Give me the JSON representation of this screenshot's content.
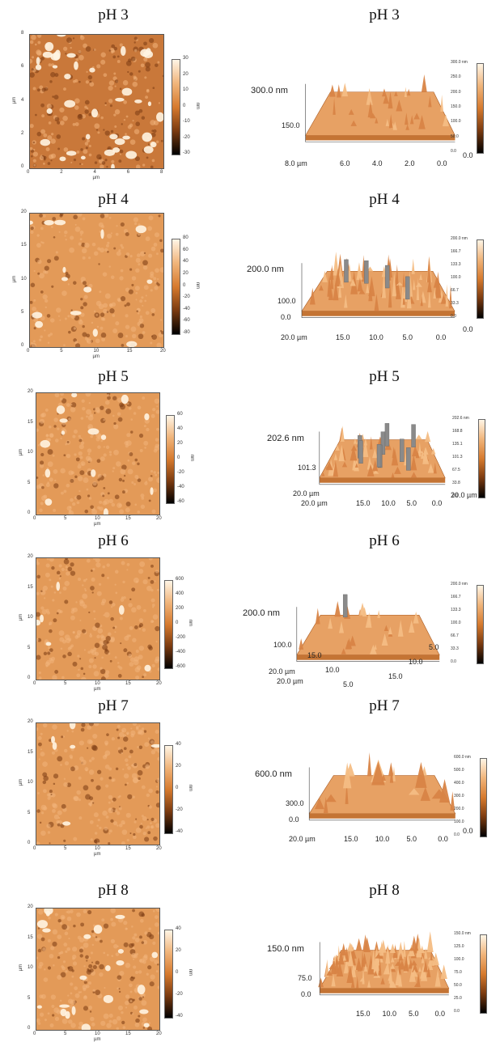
{
  "panels": [
    {
      "title": "pH 3",
      "map2d": {
        "unit": "µm",
        "y_ticks": [
          "8",
          "6",
          "4",
          "2",
          "0"
        ],
        "x_ticks": [
          "0",
          "2",
          "4",
          "6",
          "8"
        ],
        "colorbar_unit": "nm",
        "colorbar_ticks": [
          "30",
          "20",
          "10",
          "0",
          "-10",
          "-20",
          "-30"
        ]
      },
      "surface3d": {
        "z_label": "300.0 nm",
        "z_label2": "150.0",
        "x_label_far": "8.0 µm",
        "x_ticks": [
          "6.0",
          "4.0",
          "2.0",
          "0.0"
        ],
        "y_label_near": "0.0",
        "colorbar_ticks": [
          "300.0 nm",
          "250.0",
          "200.0",
          "150.0",
          "100.0",
          "50.0",
          "0.0"
        ]
      }
    },
    {
      "title": "pH 4",
      "map2d": {
        "unit": "µm",
        "y_ticks": [
          "20",
          "15",
          "10",
          "5",
          "0"
        ],
        "x_ticks": [
          "0",
          "5",
          "10",
          "15",
          "20"
        ],
        "colorbar_unit": "nm",
        "colorbar_ticks": [
          "80",
          "60",
          "40",
          "20",
          "0",
          "-20",
          "-40",
          "-60",
          "-80"
        ]
      },
      "surface3d": {
        "z_label": "200.0 nm",
        "z_label2": "100.0",
        "z_label3": "0.0",
        "x_label_far": "20.0 µm",
        "x_ticks": [
          "15.0",
          "10.0",
          "5.0",
          "0.0"
        ],
        "y_label_near": "0.0",
        "colorbar_ticks": [
          "200.0 nm",
          "166.7",
          "133.3",
          "100.0",
          "66.7",
          "33.3",
          "0.0"
        ]
      }
    },
    {
      "title": "pH 5",
      "map2d": {
        "unit": "µm",
        "y_ticks": [
          "20",
          "15",
          "10",
          "5",
          "0"
        ],
        "x_ticks": [
          "0",
          "5",
          "10",
          "15",
          "20"
        ],
        "colorbar_unit": "nm",
        "colorbar_ticks": [
          "60",
          "40",
          "20",
          "0",
          "-20",
          "-40",
          "-60"
        ]
      },
      "surface3d": {
        "z_label": "202.6 nm",
        "z_label2": "101.3",
        "x_label_far": "20.0 µm",
        "x_label_far2": "20.0 µm",
        "x_ticks": [
          "15.0",
          "10.0",
          "5.0",
          "0.0"
        ],
        "y_label_near": "20.0 µm",
        "colorbar_ticks": [
          "202.6 nm",
          "168.8",
          "135.1",
          "101.3",
          "67.5",
          "33.8",
          "0.0"
        ]
      }
    },
    {
      "title": "pH 6",
      "map2d": {
        "unit": "µm",
        "y_ticks": [
          "20",
          "15",
          "10",
          "5",
          "0"
        ],
        "x_ticks": [
          "0",
          "5",
          "10",
          "15",
          "20"
        ],
        "colorbar_unit": "nm",
        "colorbar_ticks": [
          "600",
          "400",
          "200",
          "0",
          "-200",
          "-400",
          "-600"
        ]
      },
      "surface3d": {
        "z_label": "200.0 nm",
        "z_label2": "100.0",
        "x_label_far": "20.0 µm",
        "x_label_far2": "20.0 µm",
        "x_ticks_left": [
          "15.0",
          "10.0",
          "5.0"
        ],
        "x_ticks_right": [
          "5.0",
          "10.0",
          "15.0"
        ],
        "colorbar_ticks": [
          "200.0 nm",
          "166.7",
          "133.3",
          "100.0",
          "66.7",
          "33.3",
          "0.0"
        ]
      }
    },
    {
      "title": "pH 7",
      "map2d": {
        "unit": "µm",
        "y_ticks": [
          "20",
          "15",
          "10",
          "5",
          "0"
        ],
        "x_ticks": [
          "0",
          "5",
          "10",
          "15",
          "20"
        ],
        "colorbar_unit": "nm",
        "colorbar_ticks": [
          "40",
          "20",
          "0",
          "-20",
          "-40"
        ]
      },
      "surface3d": {
        "z_label": "600.0 nm",
        "z_label2": "300.0",
        "z_label3": "0.0",
        "x_label_far": "20.0 µm",
        "x_ticks": [
          "15.0",
          "10.0",
          "5.0",
          "0.0"
        ],
        "y_label_near": "0.0",
        "colorbar_ticks": [
          "600.0 nm",
          "500.0",
          "400.0",
          "300.0",
          "200.0",
          "100.0",
          "0.0"
        ]
      }
    },
    {
      "title": "pH 8",
      "map2d": {
        "unit": "µm",
        "y_ticks": [
          "20",
          "15",
          "10",
          "5",
          "0"
        ],
        "x_ticks": [
          "0",
          "5",
          "10",
          "15",
          "20"
        ],
        "colorbar_unit": "nm",
        "colorbar_ticks": [
          "40",
          "20",
          "0",
          "-20",
          "-40"
        ]
      },
      "surface3d": {
        "z_label": "150.0 nm",
        "z_label2": "75.0",
        "z_label3": "0.0",
        "x_ticks": [
          "15.0",
          "10.0",
          "5.0",
          "0.0"
        ],
        "colorbar_ticks": [
          "150.0 nm",
          "125.0",
          "100.0",
          "75.0",
          "50.0",
          "25.0",
          "0.0"
        ]
      }
    }
  ],
  "colors": {
    "afm_light": "#fdf1df",
    "afm_mid": "#e0944e",
    "afm_dark": "#1a0a03",
    "surface_top": "#f0b070",
    "surface_side": "#c47434"
  }
}
